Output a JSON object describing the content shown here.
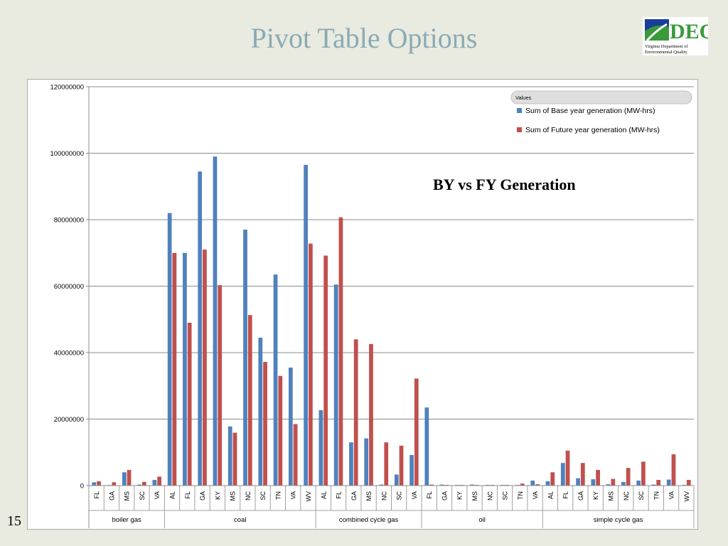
{
  "slide": {
    "title": "Pivot Table Options",
    "page_number": "15",
    "logo": {
      "lines": [
        "DEQ",
        "Virginia Department of",
        "Environmental Quality"
      ],
      "colors": {
        "blue": "#1a3f9a",
        "green": "#3a9a3a",
        "white": "#ffffff"
      }
    }
  },
  "chart_data": {
    "type": "bar",
    "annotation": "BY vs FY Generation",
    "legend_title": "Values",
    "legend_position": "top-right",
    "ylim": [
      0,
      120000000
    ],
    "yticks": [
      "0",
      "20000000",
      "40000000",
      "60000000",
      "80000000",
      "100000000",
      "120000000"
    ],
    "grid": true,
    "groups": [
      {
        "name": "boiler gas",
        "categories": [
          "FL",
          "GA",
          "MS",
          "SC",
          "VA"
        ]
      },
      {
        "name": "coal",
        "categories": [
          "AL",
          "FL",
          "GA",
          "KY",
          "MS",
          "NC",
          "SC",
          "TN",
          "VA",
          "WV"
        ]
      },
      {
        "name": "combined cycle gas",
        "categories": [
          "AL",
          "FL",
          "GA",
          "MS",
          "NC",
          "SC",
          "VA"
        ]
      },
      {
        "name": "oil",
        "categories": [
          "FL",
          "GA",
          "KY",
          "MS",
          "NC",
          "SC",
          "TN",
          "VA"
        ]
      },
      {
        "name": "simple cycle gas",
        "categories": [
          "AL",
          "FL",
          "GA",
          "KY",
          "MS",
          "NC",
          "SC",
          "TN",
          "VA",
          "WV"
        ]
      }
    ],
    "series": [
      {
        "name": "Sum of Base year generation (MW-hrs)",
        "color": "#4f81bd",
        "values": [
          1000000,
          0,
          4000000,
          300000,
          1700000,
          82000000,
          70000000,
          94500000,
          99000000,
          17800000,
          77000000,
          44500000,
          63500000,
          35500000,
          96500000,
          22700000,
          60500000,
          13000000,
          14200000,
          300000,
          3300000,
          9200000,
          23500000,
          300000,
          200000,
          300000,
          200000,
          200000,
          200000,
          1500000,
          1300000,
          6800000,
          2200000,
          1900000,
          400000,
          1100000,
          1500000,
          300000,
          1800000,
          200000
        ]
      },
      {
        "name": "Sum of Future year generation (MW-hrs)",
        "color": "#c0504d",
        "values": [
          1300000,
          1000000,
          4700000,
          1100000,
          2700000,
          70000000,
          49000000,
          71000000,
          60300000,
          15900000,
          51300000,
          37200000,
          33000000,
          18500000,
          72800000,
          69200000,
          80700000,
          44000000,
          42600000,
          13000000,
          12000000,
          32200000,
          300000,
          200000,
          200000,
          200000,
          200000,
          200000,
          600000,
          400000,
          4000000,
          10500000,
          6800000,
          4700000,
          2000000,
          5300000,
          7200000,
          1700000,
          9400000,
          1700000
        ]
      }
    ]
  }
}
